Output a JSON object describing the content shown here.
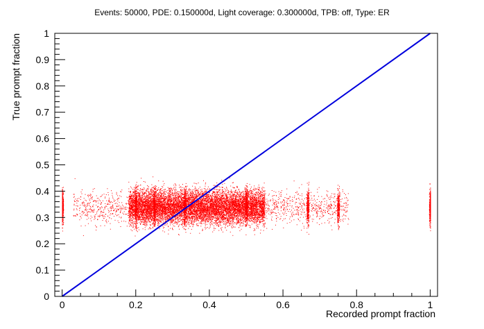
{
  "chart_data": {
    "type": "scatter",
    "title": "Events: 50000, PDE: 0.150000d, Light coverage: 0.300000d, TPB: off, Type: ER",
    "xlabel": "Recorded prompt fraction",
    "ylabel": "True prompt fraction",
    "xlim": [
      -0.02,
      1.02
    ],
    "ylim": [
      0,
      1
    ],
    "xticks": [
      "0",
      "0.2",
      "0.4",
      "0.6",
      "0.8",
      "1"
    ],
    "yticks": [
      "0",
      "0.1",
      "0.2",
      "0.3",
      "0.4",
      "0.5",
      "0.6",
      "0.7",
      "0.8",
      "0.9",
      "1"
    ],
    "grid": false,
    "legend": "none",
    "series": [
      {
        "kind": "points",
        "color": "#ff0000",
        "description_of_distribution": {
          "points": 50000,
          "x_range": [
            0,
            1
          ],
          "y_range": [
            0.18,
            0.56
          ],
          "y_center": 0.34,
          "dense_x_range": [
            0.18,
            0.55
          ],
          "discrete_x_columns": [
            0,
            0.2,
            0.25,
            0.333,
            0.5,
            0.667,
            0.75,
            1
          ]
        }
      },
      {
        "kind": "line",
        "color": "#0000dd",
        "x": [
          0,
          1
        ],
        "y": [
          0,
          1
        ]
      }
    ]
  }
}
